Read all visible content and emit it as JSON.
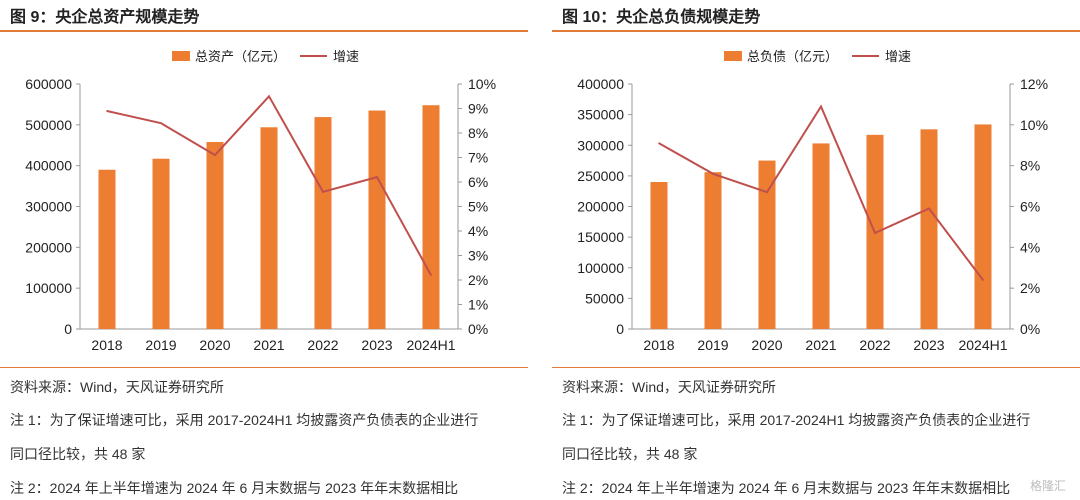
{
  "left": {
    "title": "图 9：央企总资产规模走势",
    "notes": [
      "资料来源：Wind，天风证券研究所",
      "注 1：为了保证增速可比，采用 2017-2024H1 均披露资产负债表的企业进行",
      "同口径比较，共 48 家",
      "注 2：2024 年上半年增速为 2024 年 6 月末数据与 2023 年年末数据相比"
    ]
  },
  "right": {
    "title": "图 10：央企总负债规模走势",
    "notes": [
      "资料来源：Wind，天风证券研究所",
      "注 1：为了保证增速可比，采用 2017-2024H1 均披露资产负债表的企业进行",
      "同口径比较，共 48 家",
      "注 2：2024 年上半年增速为 2024 年 6 月末数据与 2023 年年末数据相比"
    ]
  },
  "watermark": "格隆汇",
  "colors": {
    "bar": "#ed7d31",
    "line": "#c0504d",
    "accent": "#e07b39"
  },
  "chart_data": [
    {
      "type": "bar",
      "categories": [
        "2018",
        "2019",
        "2020",
        "2021",
        "2022",
        "2023",
        "2024H1"
      ],
      "series": [
        {
          "name": "总资产（亿元）",
          "type": "bar",
          "axis": "left",
          "values": [
            390000,
            417000,
            458000,
            494000,
            519000,
            535000,
            548000
          ]
        },
        {
          "name": "增速",
          "type": "line",
          "axis": "right",
          "values": [
            0.089,
            0.084,
            0.071,
            0.095,
            0.056,
            0.062,
            0.022
          ]
        }
      ],
      "ylim": [
        0,
        600000
      ],
      "yticks": [
        "0",
        "100000",
        "200000",
        "300000",
        "400000",
        "500000",
        "600000"
      ],
      "y2lim": [
        0,
        0.1
      ],
      "y2ticks": [
        "0%",
        "1%",
        "2%",
        "3%",
        "4%",
        "5%",
        "6%",
        "7%",
        "8%",
        "9%",
        "10%"
      ],
      "legend": "top-center",
      "grid": false
    },
    {
      "type": "bar",
      "categories": [
        "2018",
        "2019",
        "2020",
        "2021",
        "2022",
        "2023",
        "2024H1"
      ],
      "series": [
        {
          "name": "总负债（亿元）",
          "type": "bar",
          "axis": "left",
          "values": [
            240000,
            256000,
            275000,
            303000,
            317000,
            326000,
            334000
          ]
        },
        {
          "name": "增速",
          "type": "line",
          "axis": "right",
          "values": [
            0.091,
            0.076,
            0.067,
            0.109,
            0.047,
            0.059,
            0.024
          ]
        }
      ],
      "ylim": [
        0,
        400000
      ],
      "yticks": [
        "0",
        "50000",
        "100000",
        "150000",
        "200000",
        "250000",
        "300000",
        "350000",
        "400000"
      ],
      "y2lim": [
        0,
        0.12
      ],
      "y2ticks": [
        "0%",
        "2%",
        "4%",
        "6%",
        "8%",
        "10%",
        "12%"
      ],
      "legend": "top-center",
      "grid": false
    }
  ]
}
